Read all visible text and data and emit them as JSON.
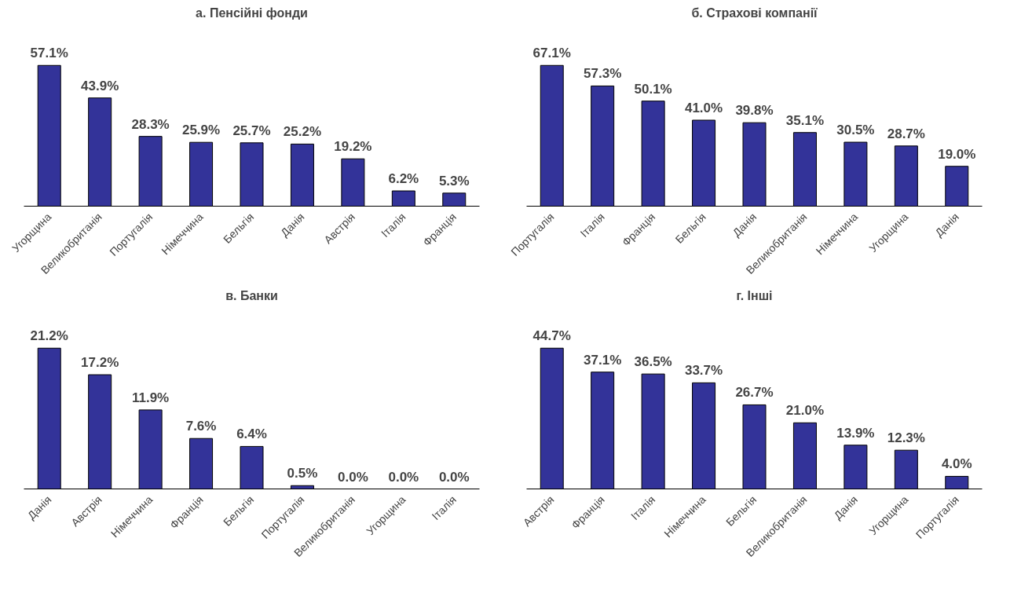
{
  "chart_data": [
    {
      "type": "bar",
      "title": "а. Пенсійні фонди",
      "categories": [
        "Угорщина",
        "Великобританія",
        "Португалія",
        "Німеччина",
        "Бельгія",
        "Данія",
        "Австрія",
        "Італія",
        "Франція"
      ],
      "values": [
        57.1,
        43.9,
        28.3,
        25.9,
        25.7,
        25.2,
        19.2,
        6.2,
        5.3
      ],
      "value_labels": [
        "57.1%",
        "43.9%",
        "28.3%",
        "25.9%",
        "25.7%",
        "25.2%",
        "19.2%",
        "6.2%",
        "5.3%"
      ],
      "color": "#333399",
      "grid": false,
      "tick_labels": "x"
    },
    {
      "type": "bar",
      "title": "б. Страхові компанії",
      "categories": [
        "Португалія",
        "Італія",
        "Франція",
        "Бельгія",
        "Данія",
        "Великобританія",
        "Німеччина",
        "Угорщина",
        "Данія"
      ],
      "values": [
        67.1,
        57.3,
        50.1,
        41.0,
        39.8,
        35.1,
        30.5,
        28.7,
        19.0
      ],
      "value_labels": [
        "67.1%",
        "57.3%",
        "50.1%",
        "41.0%",
        "39.8%",
        "35.1%",
        "30.5%",
        "28.7%",
        "19.0%"
      ],
      "color": "#333399",
      "grid": false,
      "tick_labels": "x"
    },
    {
      "type": "bar",
      "title": "в. Банки",
      "categories": [
        "Данія",
        "Австрія",
        "Німеччина",
        "Франція",
        "Бельгія",
        "Португалія",
        "Великобританія",
        "Угорщина",
        "Італія"
      ],
      "values": [
        21.2,
        17.2,
        11.9,
        7.6,
        6.4,
        0.5,
        0.0,
        0.0,
        0.0
      ],
      "value_labels": [
        "21.2%",
        "17.2%",
        "11.9%",
        "7.6%",
        "6.4%",
        "0.5%",
        "0.0%",
        "0.0%",
        "0.0%"
      ],
      "color": "#333399",
      "grid": false,
      "tick_labels": "x"
    },
    {
      "type": "bar",
      "title": "г. Інші",
      "categories": [
        "Австрія",
        "Франція",
        "Італія",
        "Німеччина",
        "Бельгія",
        "Великобританія",
        "Данія",
        "Угорщина",
        "Португалія"
      ],
      "values": [
        44.7,
        37.1,
        36.5,
        33.7,
        26.7,
        21.0,
        13.9,
        12.3,
        4.0
      ],
      "value_labels": [
        "44.7%",
        "37.1%",
        "36.5%",
        "33.7%",
        "26.7%",
        "21.0%",
        "13.9%",
        "12.3%",
        "4.0%"
      ],
      "color": "#333399",
      "grid": false,
      "tick_labels": "x"
    }
  ]
}
